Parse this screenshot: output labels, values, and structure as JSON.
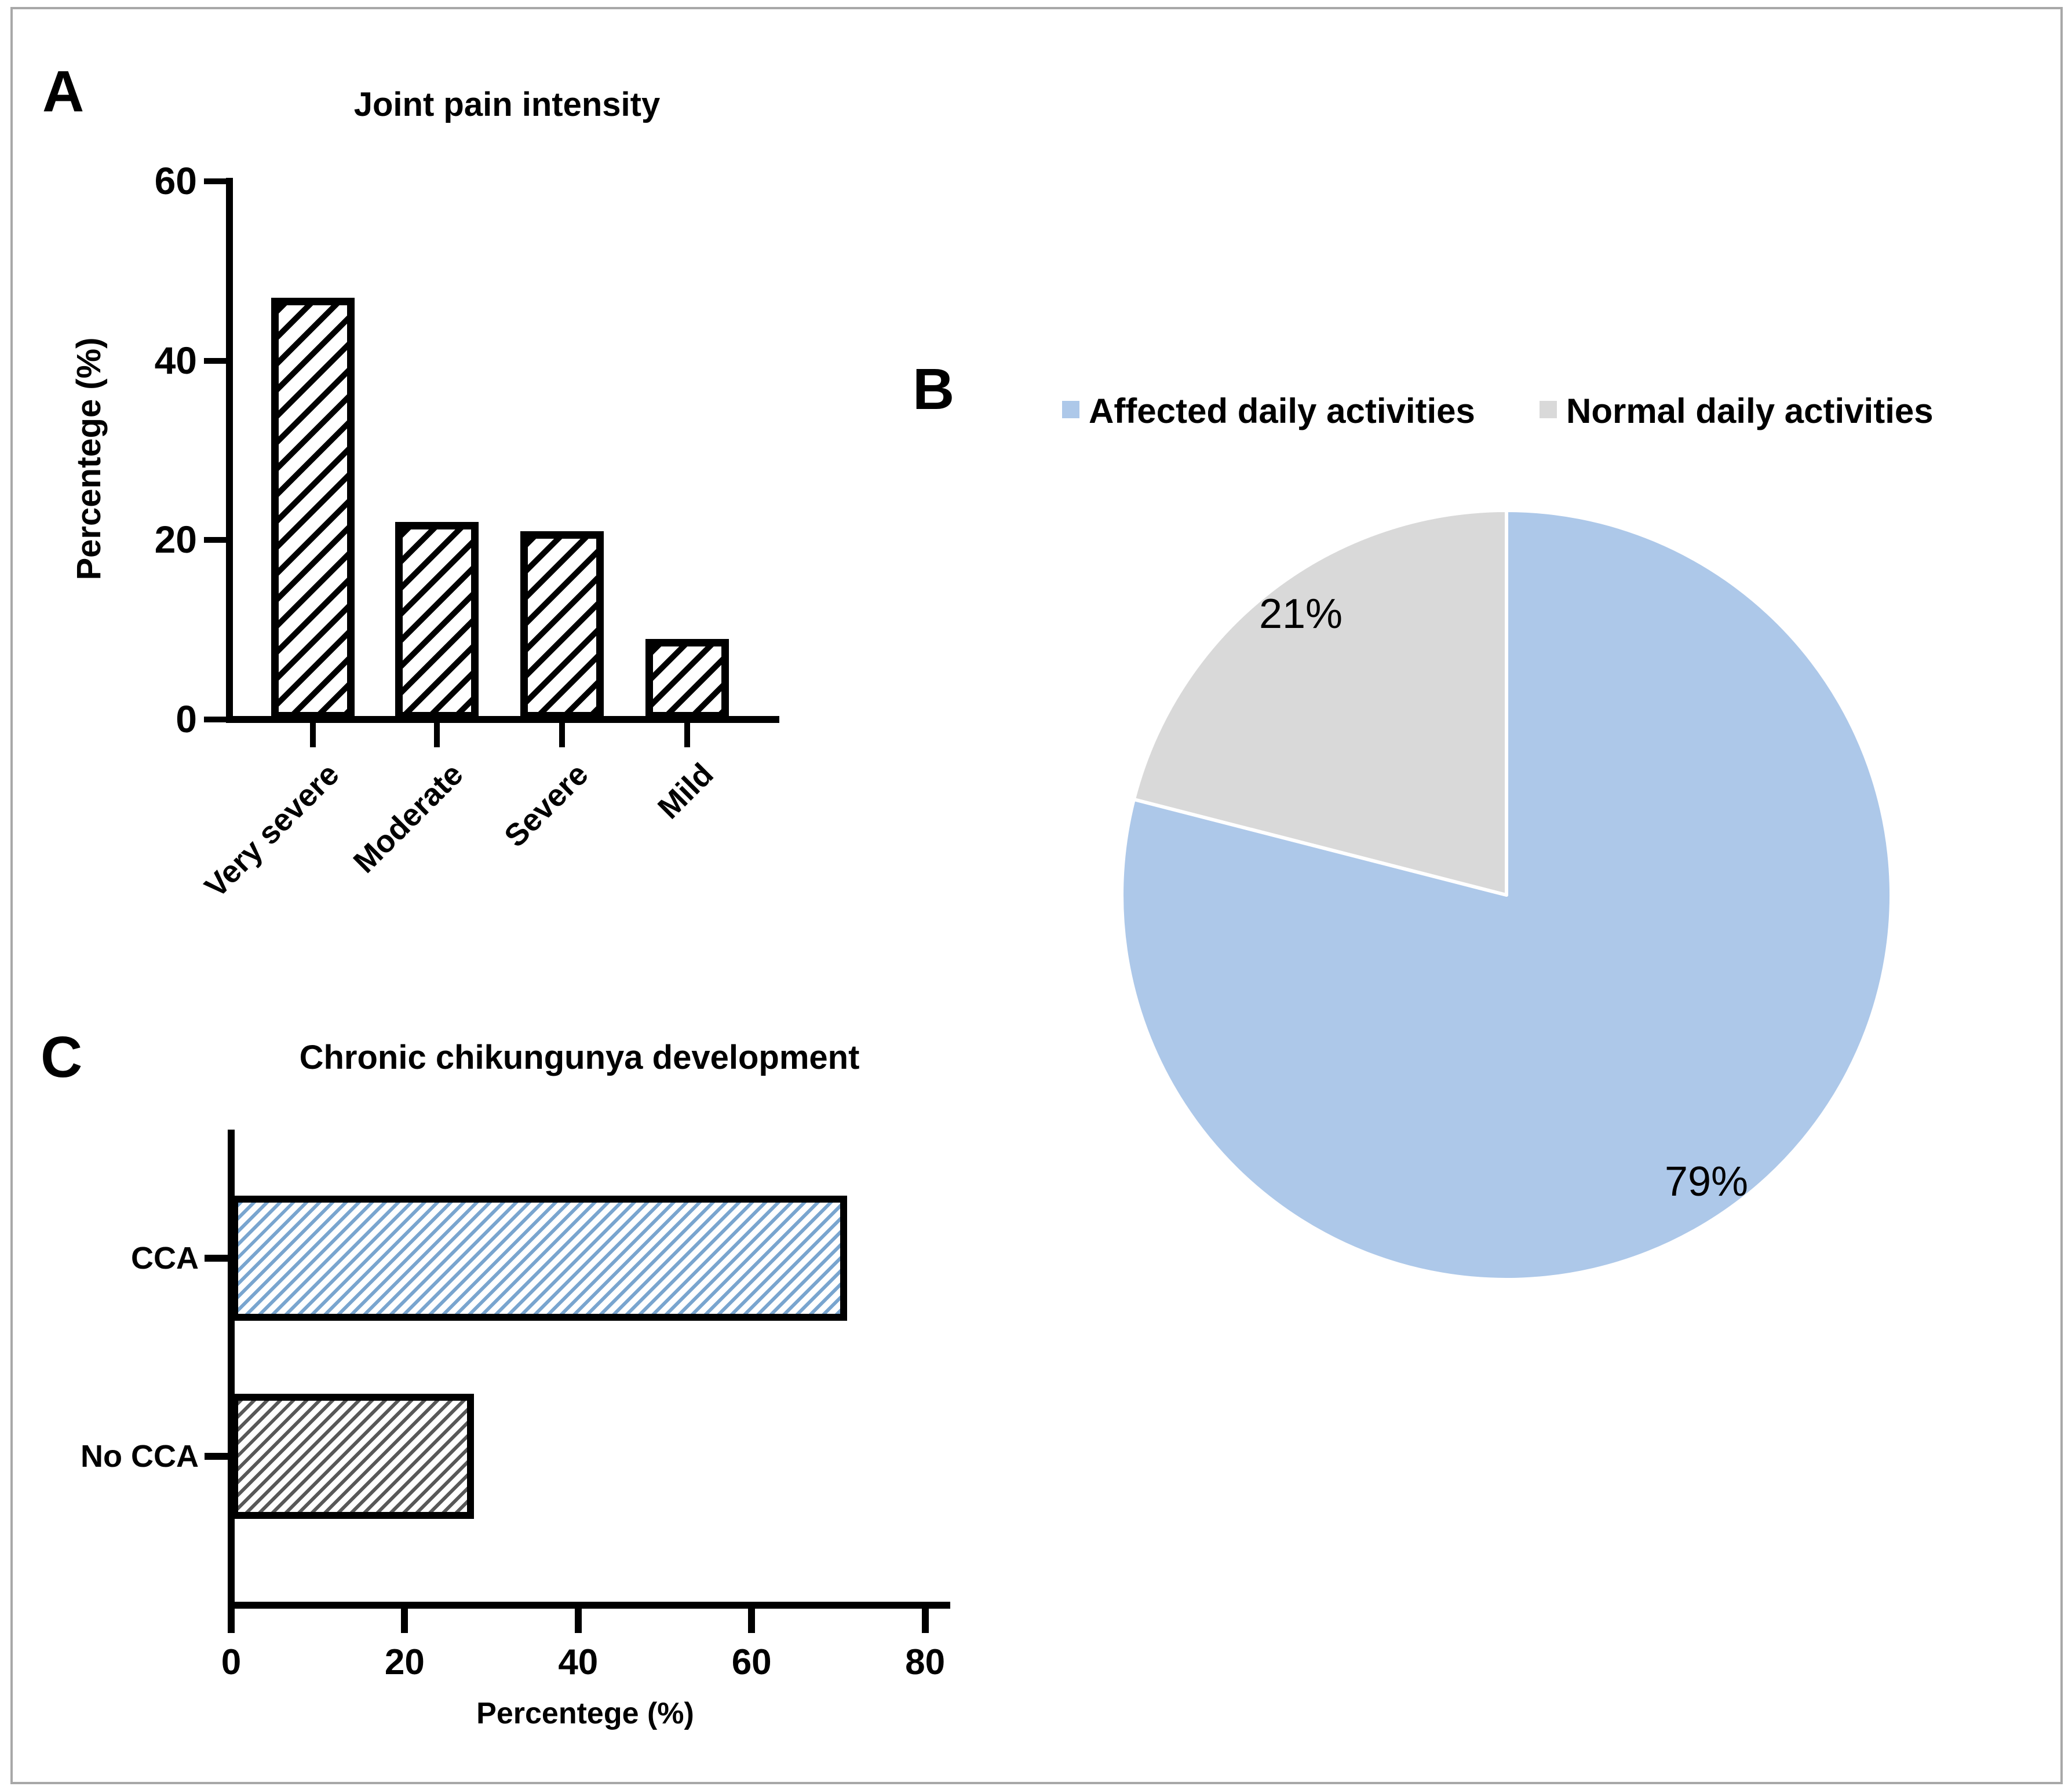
{
  "figure": {
    "panels": [
      {
        "label": "A"
      },
      {
        "label": "B"
      },
      {
        "label": "C"
      }
    ]
  },
  "colors": {
    "frame": "#a8a8a8",
    "pie_blue": "#adc8e9",
    "pie_gray": "#d9d9d9",
    "hatch_black": "#000000",
    "hatch_blue": "#79a5cf",
    "hatch_dark": "#585858"
  },
  "chart_data": [
    {
      "panel": "A",
      "type": "bar",
      "title": "Joint pain intensity",
      "xlabel": "",
      "ylabel": "Percentege (%)",
      "ylim": [
        0,
        60
      ],
      "yticks": [
        0,
        20,
        40,
        60
      ],
      "categories": [
        "Very severe",
        "Moderate",
        "Severe",
        "Mild"
      ],
      "values": [
        47,
        22,
        21,
        9
      ],
      "bar_style": "white fill with black diagonal hatch, thick black border",
      "grid": false
    },
    {
      "panel": "B",
      "type": "pie",
      "legend": [
        "Affected daily activities",
        "Normal daily activities"
      ],
      "legend_position": "top",
      "direction": "clockwise",
      "start_angle_deg": 0,
      "slices": [
        {
          "label": "79%",
          "value": 79,
          "color_key": "pie_blue"
        },
        {
          "label": "21%",
          "value": 21,
          "color_key": "pie_gray"
        }
      ]
    },
    {
      "panel": "C",
      "type": "bar-horizontal",
      "title": "Chronic chikungunya development",
      "xlabel": "Percentege (%)",
      "ylabel": "",
      "xlim": [
        0,
        80
      ],
      "xticks": [
        0,
        20,
        40,
        60,
        80
      ],
      "categories": [
        "CCA",
        "No CCA"
      ],
      "values": [
        71,
        28
      ],
      "bar_styles": [
        "white fill with blue diagonal hatch, thick black border",
        "white fill with dark-gray diagonal hatch, thick black border"
      ],
      "grid": false
    }
  ]
}
